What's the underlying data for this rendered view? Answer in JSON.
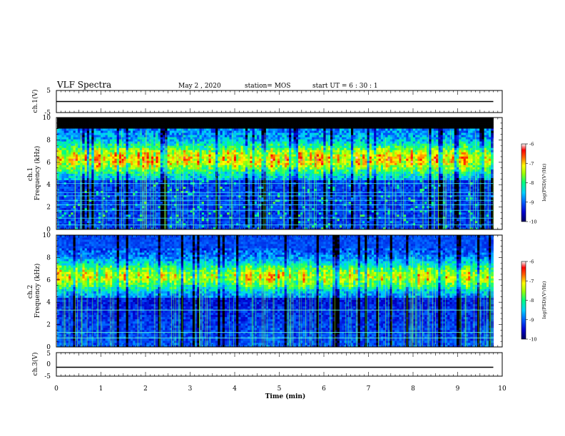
{
  "header": {
    "title": "VLF Spectra",
    "date": "May 2  , 2020",
    "station": "station= MOS",
    "start": "start  UT  =   6  : 30 : 1"
  },
  "chart_data": [
    {
      "id": "ch1-waveform",
      "type": "line",
      "ylabel": "ch.1(V)",
      "ylim": [
        -5,
        5
      ],
      "yticks": [
        5,
        -5
      ],
      "series": [
        {
          "x": [
            0,
            9.8
          ],
          "y": [
            0,
            0
          ]
        }
      ]
    },
    {
      "id": "ch1-spectrogram",
      "type": "heatmap",
      "ylabel": "ch.1\nFrequency (kHz)",
      "ylim": [
        0,
        10
      ],
      "yticks": [
        0,
        2,
        4,
        6,
        8,
        10
      ],
      "xlim": [
        0,
        10
      ],
      "data_xmax": 9.8,
      "colorbar": {
        "label": "log(PSD)(V²/Hz)",
        "range": [
          -10,
          -6
        ],
        "ticks": [
          "-6",
          "-7",
          "-8",
          "-9",
          "-10"
        ]
      }
    },
    {
      "id": "ch2-spectrogram",
      "type": "heatmap",
      "ylabel": "ch.2\nFrequency (kHz)",
      "ylim": [
        0,
        10
      ],
      "yticks": [
        0,
        2,
        4,
        6,
        8,
        10
      ],
      "xlim": [
        0,
        10
      ],
      "data_xmax": 9.8,
      "colorbar": {
        "label": "log(PSD)(V²/Hz)",
        "range": [
          -10,
          -6
        ],
        "ticks": [
          "-6",
          "-7",
          "-8",
          "-9",
          "-10"
        ]
      }
    },
    {
      "id": "ch3-waveform",
      "type": "line",
      "ylabel": "ch.3(V)",
      "ylim": [
        -5,
        5
      ],
      "yticks": [
        5,
        0,
        -5
      ],
      "series": [
        {
          "x": [
            0,
            9.8
          ],
          "y": [
            -1.2,
            -1.2
          ]
        }
      ]
    }
  ],
  "xaxis": {
    "label": "Time  (min)",
    "range": [
      0,
      10
    ],
    "ticks": [
      "0",
      "1",
      "2",
      "3",
      "4",
      "5",
      "6",
      "7",
      "8",
      "9",
      "10"
    ]
  }
}
